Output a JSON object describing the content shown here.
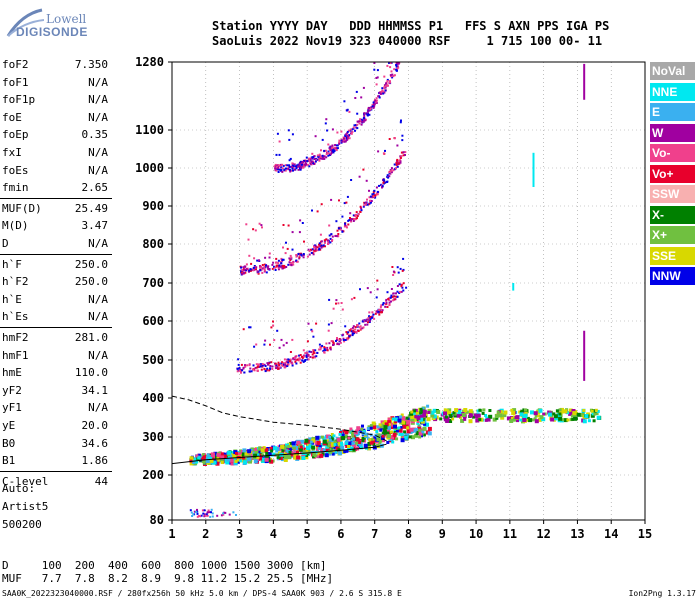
{
  "logo": {
    "line1": "Lowell",
    "line2": "DIGISONDE"
  },
  "header": {
    "line1": "Station YYYY DAY   DDD HHMMSS P1   FFS S AXN PPS IGA PS",
    "line2": "SaoLuis 2022 Nov19 323 040000 RSF     1 715 100 00- 11"
  },
  "params": [
    {
      "k": "foF2",
      "v": "7.350"
    },
    {
      "k": "foF1",
      "v": "N/A"
    },
    {
      "k": "foF1p",
      "v": "N/A"
    },
    {
      "k": "foE",
      "v": "N/A"
    },
    {
      "k": "foEp",
      "v": "0.35"
    },
    {
      "k": "fxI",
      "v": "N/A"
    },
    {
      "k": "foEs",
      "v": "N/A"
    },
    {
      "k": "fmin",
      "v": "2.65"
    },
    {
      "k": "MUF(D)",
      "v": "25.49"
    },
    {
      "k": "M(D)",
      "v": "3.47"
    },
    {
      "k": "D",
      "v": "N/A"
    },
    {
      "k": "h`F",
      "v": "250.0"
    },
    {
      "k": "h`F2",
      "v": "250.0"
    },
    {
      "k": "h`E",
      "v": "N/A"
    },
    {
      "k": "h`Es",
      "v": "N/A"
    },
    {
      "k": "hmF2",
      "v": "281.0"
    },
    {
      "k": "hmF1",
      "v": "N/A"
    },
    {
      "k": "hmE",
      "v": "110.0"
    },
    {
      "k": "yF2",
      "v": "34.1"
    },
    {
      "k": "yF1",
      "v": "N/A"
    },
    {
      "k": "yE",
      "v": "20.0"
    },
    {
      "k": "B0",
      "v": "34.6"
    },
    {
      "k": "B1",
      "v": "1.86"
    },
    {
      "k": "C-level",
      "v": "44"
    }
  ],
  "auto": {
    "l1": "Auto:",
    "l2": "Artist5",
    "l3": "500200"
  },
  "legend": [
    {
      "name": "NoVal",
      "color": "#a8a8a8"
    },
    {
      "name": "NNE",
      "color": "#00e8f0"
    },
    {
      "name": "E",
      "color": "#3ab0f0"
    },
    {
      "name": "W",
      "color": "#a000a0"
    },
    {
      "name": "Vo-",
      "color": "#f0408c"
    },
    {
      "name": "Vo+",
      "color": "#e8002c"
    },
    {
      "name": "SSW",
      "color": "#f8b0b0"
    },
    {
      "name": "X-",
      "color": "#008000"
    },
    {
      "name": "X+",
      "color": "#70c040"
    },
    {
      "name": "SSE",
      "color": "#d8d800"
    },
    {
      "name": "NNW",
      "color": "#0000e8"
    }
  ],
  "muf_table": {
    "d_label": "D",
    "d_values": [
      "100",
      "200",
      "400",
      "600",
      "800",
      "1000",
      "1500",
      "3000",
      "[km]"
    ],
    "muf_label": "MUF",
    "muf_values": [
      "7.7",
      "7.8",
      "8.2",
      "8.9",
      "9.8",
      "11.2",
      "15.2",
      "25.5",
      "[MHz]"
    ]
  },
  "footer": "SAA0K_2022323040000.RSF / 280fx256h 50 kHz 5.0 km / DPS-4 SAA0K 903 / 2.6 S 315.8 E",
  "version": "Ion2Png 1.3.17",
  "chart_data": {
    "type": "scatter",
    "title": "",
    "xlabel": "",
    "ylabel": "",
    "xlim": [
      1,
      15
    ],
    "ylim": [
      80,
      1280
    ],
    "x_ticks": [
      "1",
      "2",
      "3",
      "4",
      "5",
      "6",
      "7",
      "8",
      "9",
      "10",
      "11",
      "12",
      "13",
      "14",
      "15"
    ],
    "y_ticks": [
      "80",
      "200",
      "300",
      "400",
      "500",
      "600",
      "700",
      "800",
      "900",
      "1000",
      "1100",
      "1280"
    ],
    "y_tick_values": [
      80,
      200,
      300,
      400,
      500,
      600,
      700,
      800,
      900,
      1000,
      1100,
      1280
    ],
    "y_scale": "piecewise",
    "y_axis_breaks": [
      80,
      200,
      300,
      400,
      500,
      600,
      700,
      800,
      900,
      1000,
      1100,
      1280
    ],
    "grid": "dotted",
    "traces": [
      {
        "name": "F-trace 1st hop",
        "x_start": 1.5,
        "x_end": 8.6,
        "h_start": 240,
        "h_end": 330,
        "colors": [
          "Vo-",
          "Vo+",
          "NNE",
          "X-",
          "X+",
          "SSE",
          "NNW",
          "E"
        ]
      },
      {
        "name": "F-trace 2nd hop",
        "x_start": 2.9,
        "x_end": 7.9,
        "h_start": 480,
        "h_end": 700,
        "colors": [
          "NNW",
          "Vo+",
          "Vo-",
          "W"
        ]
      },
      {
        "name": "F-trace 3rd hop",
        "x_start": 3.0,
        "x_end": 7.9,
        "h_start": 735,
        "h_end": 1050,
        "colors": [
          "NNW",
          "W",
          "Vo-",
          "Vo+"
        ]
      },
      {
        "name": "F-trace 4th hop",
        "x_start": 4.0,
        "x_end": 7.7,
        "h_start": 1000,
        "h_end": 1280,
        "colors": [
          "W",
          "Vo-",
          "NNW"
        ]
      },
      {
        "name": "spread tail",
        "x_start": 8.0,
        "x_end": 13.6,
        "h_start": 360,
        "h_end": 355,
        "colors": [
          "X+",
          "X-",
          "SSE",
          "NNE",
          "W"
        ]
      }
    ],
    "profile_solid": [
      [
        1.0,
        230
      ],
      [
        2,
        240
      ],
      [
        3,
        246
      ],
      [
        4,
        252
      ],
      [
        5,
        258
      ],
      [
        6,
        265
      ],
      [
        7,
        273
      ],
      [
        7.35,
        281
      ]
    ],
    "profile_dashed": [
      [
        1.0,
        405
      ],
      [
        1.5,
        395
      ],
      [
        2,
        380
      ],
      [
        2.5,
        362
      ],
      [
        3.0,
        352
      ],
      [
        3.5,
        345
      ],
      [
        4,
        338
      ],
      [
        5,
        330
      ],
      [
        6,
        320
      ],
      [
        7,
        305
      ],
      [
        7.35,
        290
      ]
    ],
    "vertical_marks": [
      {
        "x": 13.2,
        "h1": 1180,
        "h2": 1275,
        "color": "W"
      },
      {
        "x": 13.2,
        "h1": 445,
        "h2": 575,
        "color": "W"
      },
      {
        "x": 11.7,
        "h1": 950,
        "h2": 1040,
        "color": "NNE"
      },
      {
        "x": 11.1,
        "h1": 680,
        "h2": 700,
        "color": "NNE"
      }
    ]
  }
}
